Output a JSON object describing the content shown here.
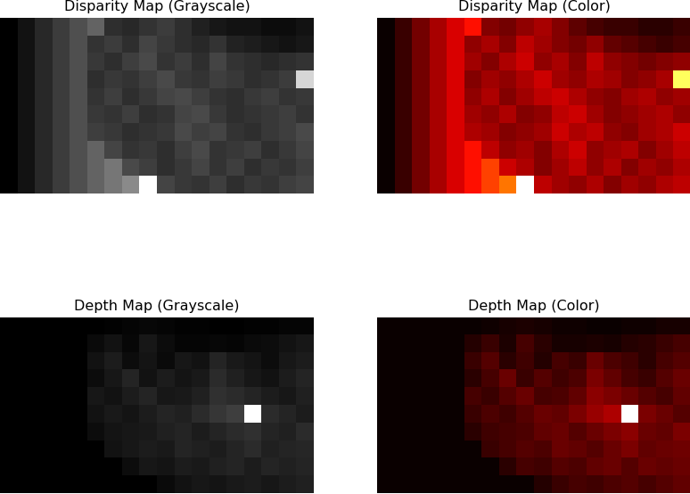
{
  "chart_data": [
    {
      "type": "heatmap",
      "title": "Disparity Map (Grayscale)",
      "color": "gray",
      "tick_labels": false,
      "cells": [
        [
          0.035,
          0.1,
          0.18,
          0.25,
          0.32,
          0.39,
          0.2,
          0.18,
          0.22,
          0.25,
          0.2,
          0.15,
          0.12,
          0.1,
          0.1,
          0.08,
          0.08,
          0.1
        ],
        [
          0.035,
          0.1,
          0.18,
          0.25,
          0.32,
          0.22,
          0.25,
          0.2,
          0.28,
          0.24,
          0.2,
          0.18,
          0.22,
          0.16,
          0.14,
          0.12,
          0.1,
          0.12
        ],
        [
          0.035,
          0.1,
          0.18,
          0.25,
          0.32,
          0.24,
          0.2,
          0.26,
          0.3,
          0.22,
          0.25,
          0.2,
          0.28,
          0.22,
          0.2,
          0.18,
          0.2,
          0.22
        ],
        [
          0.035,
          0.1,
          0.18,
          0.25,
          0.32,
          0.2,
          0.24,
          0.22,
          0.26,
          0.3,
          0.24,
          0.22,
          0.26,
          0.24,
          0.2,
          0.22,
          0.25,
          0.8
        ],
        [
          0.035,
          0.1,
          0.18,
          0.25,
          0.32,
          0.22,
          0.26,
          0.2,
          0.24,
          0.28,
          0.3,
          0.26,
          0.22,
          0.2,
          0.24,
          0.26,
          0.22,
          0.24
        ],
        [
          0.035,
          0.1,
          0.18,
          0.25,
          0.32,
          0.24,
          0.22,
          0.26,
          0.2,
          0.22,
          0.28,
          0.3,
          0.24,
          0.2,
          0.22,
          0.24,
          0.26,
          0.22
        ],
        [
          0.035,
          0.1,
          0.18,
          0.25,
          0.32,
          0.26,
          0.24,
          0.2,
          0.22,
          0.24,
          0.3,
          0.26,
          0.28,
          0.22,
          0.2,
          0.24,
          0.26,
          0.3
        ],
        [
          0.035,
          0.1,
          0.18,
          0.25,
          0.32,
          0.39,
          0.28,
          0.22,
          0.24,
          0.2,
          0.26,
          0.3,
          0.22,
          0.24,
          0.26,
          0.2,
          0.24,
          0.28
        ],
        [
          0.035,
          0.1,
          0.18,
          0.25,
          0.32,
          0.39,
          0.46,
          0.3,
          0.26,
          0.2,
          0.24,
          0.28,
          0.22,
          0.26,
          0.2,
          0.24,
          0.22,
          0.26
        ],
        [
          0.035,
          0.1,
          0.18,
          0.25,
          0.32,
          0.39,
          0.46,
          0.53,
          0.95,
          0.28,
          0.24,
          0.22,
          0.26,
          0.2,
          0.24,
          0.22,
          0.26,
          0.28
        ]
      ]
    },
    {
      "type": "heatmap",
      "title": "Disparity Map (Color)",
      "color": "hot",
      "tick_labels": false,
      "cells": [
        [
          0.035,
          0.1,
          0.18,
          0.25,
          0.32,
          0.39,
          0.2,
          0.18,
          0.22,
          0.25,
          0.2,
          0.15,
          0.12,
          0.1,
          0.1,
          0.08,
          0.08,
          0.1
        ],
        [
          0.035,
          0.1,
          0.18,
          0.25,
          0.32,
          0.22,
          0.25,
          0.2,
          0.28,
          0.24,
          0.2,
          0.18,
          0.22,
          0.16,
          0.14,
          0.12,
          0.1,
          0.12
        ],
        [
          0.035,
          0.1,
          0.18,
          0.25,
          0.32,
          0.24,
          0.2,
          0.26,
          0.3,
          0.22,
          0.25,
          0.2,
          0.28,
          0.22,
          0.2,
          0.18,
          0.2,
          0.22
        ],
        [
          0.035,
          0.1,
          0.18,
          0.25,
          0.32,
          0.2,
          0.24,
          0.22,
          0.26,
          0.3,
          0.24,
          0.22,
          0.26,
          0.24,
          0.2,
          0.22,
          0.25,
          0.8
        ],
        [
          0.035,
          0.1,
          0.18,
          0.25,
          0.32,
          0.22,
          0.26,
          0.2,
          0.24,
          0.28,
          0.3,
          0.26,
          0.22,
          0.2,
          0.24,
          0.26,
          0.22,
          0.24
        ],
        [
          0.035,
          0.1,
          0.18,
          0.25,
          0.32,
          0.24,
          0.22,
          0.26,
          0.2,
          0.22,
          0.28,
          0.3,
          0.24,
          0.2,
          0.22,
          0.24,
          0.26,
          0.22
        ],
        [
          0.035,
          0.1,
          0.18,
          0.25,
          0.32,
          0.26,
          0.24,
          0.2,
          0.22,
          0.24,
          0.3,
          0.26,
          0.28,
          0.22,
          0.2,
          0.24,
          0.26,
          0.3
        ],
        [
          0.035,
          0.1,
          0.18,
          0.25,
          0.32,
          0.39,
          0.28,
          0.22,
          0.24,
          0.2,
          0.26,
          0.3,
          0.22,
          0.24,
          0.26,
          0.2,
          0.24,
          0.28
        ],
        [
          0.035,
          0.1,
          0.18,
          0.25,
          0.32,
          0.39,
          0.46,
          0.3,
          0.26,
          0.2,
          0.24,
          0.28,
          0.22,
          0.26,
          0.2,
          0.24,
          0.22,
          0.26
        ],
        [
          0.035,
          0.1,
          0.18,
          0.25,
          0.32,
          0.39,
          0.46,
          0.53,
          0.95,
          0.28,
          0.24,
          0.22,
          0.26,
          0.2,
          0.24,
          0.22,
          0.26,
          0.28
        ]
      ]
    },
    {
      "type": "heatmap",
      "title": "Depth Map (Grayscale)",
      "color": "gray",
      "tick_labels": false,
      "cells": [
        [
          0.01,
          0.01,
          0.01,
          0.01,
          0.01,
          0.01,
          0.02,
          0.03,
          0.04,
          0.03,
          0.02,
          0.02,
          0.01,
          0.01,
          0.02,
          0.02,
          0.03,
          0.03
        ],
        [
          0.01,
          0.01,
          0.01,
          0.01,
          0.01,
          0.05,
          0.08,
          0.04,
          0.1,
          0.06,
          0.03,
          0.03,
          0.04,
          0.03,
          0.05,
          0.06,
          0.08,
          0.1
        ],
        [
          0.01,
          0.01,
          0.01,
          0.01,
          0.01,
          0.08,
          0.12,
          0.06,
          0.09,
          0.05,
          0.1,
          0.08,
          0.15,
          0.11,
          0.09,
          0.06,
          0.1,
          0.12
        ],
        [
          0.01,
          0.01,
          0.01,
          0.01,
          0.01,
          0.06,
          0.1,
          0.15,
          0.08,
          0.12,
          0.09,
          0.11,
          0.18,
          0.14,
          0.1,
          0.08,
          0.12,
          0.15
        ],
        [
          0.01,
          0.01,
          0.01,
          0.01,
          0.01,
          0.1,
          0.08,
          0.12,
          0.15,
          0.1,
          0.11,
          0.14,
          0.2,
          0.18,
          0.15,
          0.12,
          0.1,
          0.14
        ],
        [
          0.01,
          0.01,
          0.01,
          0.01,
          0.01,
          0.08,
          0.11,
          0.09,
          0.12,
          0.15,
          0.14,
          0.18,
          0.22,
          0.25,
          1.0,
          0.18,
          0.15,
          0.12
        ],
        [
          0.01,
          0.01,
          0.01,
          0.01,
          0.01,
          0.06,
          0.09,
          0.1,
          0.11,
          0.14,
          0.15,
          0.12,
          0.15,
          0.18,
          0.2,
          0.15,
          0.14,
          0.18
        ],
        [
          0.01,
          0.01,
          0.01,
          0.01,
          0.01,
          0.01,
          0.08,
          0.1,
          0.12,
          0.11,
          0.15,
          0.14,
          0.12,
          0.15,
          0.18,
          0.14,
          0.15,
          0.16
        ],
        [
          0.01,
          0.01,
          0.01,
          0.01,
          0.01,
          0.01,
          0.01,
          0.06,
          0.1,
          0.09,
          0.12,
          0.11,
          0.14,
          0.15,
          0.12,
          0.15,
          0.14,
          0.15
        ],
        [
          0.01,
          0.01,
          0.01,
          0.01,
          0.01,
          0.01,
          0.01,
          0.01,
          0.01,
          0.05,
          0.08,
          0.1,
          0.09,
          0.11,
          0.12,
          0.1,
          0.12,
          0.14
        ]
      ]
    },
    {
      "type": "heatmap",
      "title": "Depth Map (Color)",
      "color": "hot",
      "tick_labels": false,
      "cells": [
        [
          0.01,
          0.01,
          0.01,
          0.01,
          0.01,
          0.01,
          0.02,
          0.03,
          0.04,
          0.03,
          0.02,
          0.02,
          0.01,
          0.01,
          0.02,
          0.02,
          0.03,
          0.03
        ],
        [
          0.01,
          0.01,
          0.01,
          0.01,
          0.01,
          0.05,
          0.08,
          0.04,
          0.1,
          0.06,
          0.03,
          0.03,
          0.04,
          0.03,
          0.05,
          0.06,
          0.08,
          0.1
        ],
        [
          0.01,
          0.01,
          0.01,
          0.01,
          0.01,
          0.08,
          0.12,
          0.06,
          0.09,
          0.05,
          0.1,
          0.08,
          0.15,
          0.11,
          0.09,
          0.06,
          0.1,
          0.12
        ],
        [
          0.01,
          0.01,
          0.01,
          0.01,
          0.01,
          0.06,
          0.1,
          0.15,
          0.08,
          0.12,
          0.09,
          0.11,
          0.18,
          0.14,
          0.1,
          0.08,
          0.12,
          0.15
        ],
        [
          0.01,
          0.01,
          0.01,
          0.01,
          0.01,
          0.1,
          0.08,
          0.12,
          0.15,
          0.1,
          0.11,
          0.14,
          0.2,
          0.18,
          0.15,
          0.12,
          0.1,
          0.14
        ],
        [
          0.01,
          0.01,
          0.01,
          0.01,
          0.01,
          0.08,
          0.11,
          0.09,
          0.12,
          0.15,
          0.14,
          0.18,
          0.22,
          0.25,
          1.0,
          0.18,
          0.15,
          0.12
        ],
        [
          0.01,
          0.01,
          0.01,
          0.01,
          0.01,
          0.06,
          0.09,
          0.1,
          0.11,
          0.14,
          0.15,
          0.12,
          0.15,
          0.18,
          0.2,
          0.15,
          0.14,
          0.18
        ],
        [
          0.01,
          0.01,
          0.01,
          0.01,
          0.01,
          0.01,
          0.08,
          0.1,
          0.12,
          0.11,
          0.15,
          0.14,
          0.12,
          0.15,
          0.18,
          0.14,
          0.15,
          0.16
        ],
        [
          0.01,
          0.01,
          0.01,
          0.01,
          0.01,
          0.01,
          0.01,
          0.06,
          0.1,
          0.09,
          0.12,
          0.11,
          0.14,
          0.15,
          0.12,
          0.15,
          0.14,
          0.15
        ],
        [
          0.01,
          0.01,
          0.01,
          0.01,
          0.01,
          0.01,
          0.01,
          0.01,
          0.01,
          0.05,
          0.08,
          0.1,
          0.09,
          0.11,
          0.12,
          0.1,
          0.12,
          0.14
        ]
      ]
    }
  ]
}
